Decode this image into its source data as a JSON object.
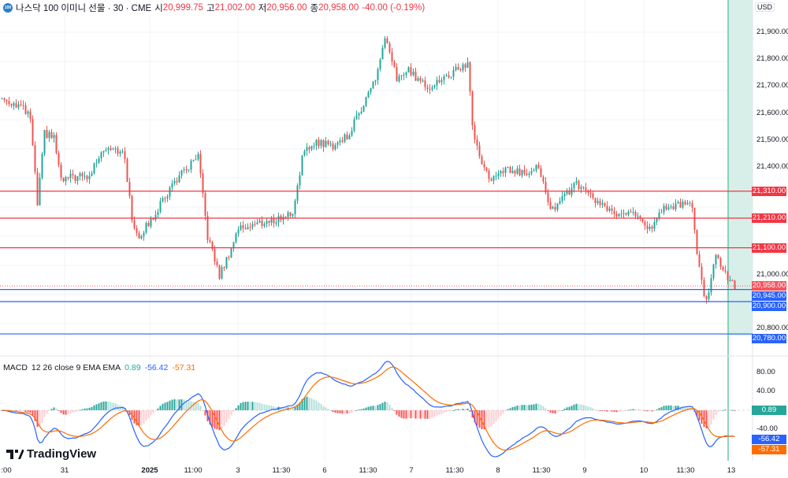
{
  "header": {
    "title": "나스닥 100 이미니 선물 · 30 · CME",
    "open_label": "시",
    "open": "20,999.75",
    "high_label": "고",
    "high": "21,002.00",
    "low_label": "저",
    "low": "20,956.00",
    "close_label": "종",
    "close": "20,958.00",
    "change": "-40.00 (-0.19%)",
    "logo_text": "100"
  },
  "currency": "USD",
  "price_axis": [
    "21,900.00",
    "21,800.00",
    "21,700.00",
    "21,600.00",
    "21,500.00",
    "21,400.00",
    "21,000.00",
    "20,800.00"
  ],
  "price_axis_values": [
    21900,
    21800,
    21700,
    21600,
    21500,
    21400,
    21000,
    20800
  ],
  "levels": [
    {
      "label": "21,310.00",
      "value": 21310,
      "color": "#f23645"
    },
    {
      "label": "21,210.00",
      "value": 21210,
      "color": "#f23645"
    },
    {
      "label": "21,100.00",
      "value": 21100,
      "color": "#f23645"
    },
    {
      "label": "20,945.00",
      "value": 20945,
      "color": "#2962ff"
    },
    {
      "label": "20,900.00",
      "value": 20900,
      "color": "#2962ff"
    },
    {
      "label": "20,780.00",
      "value": 20780,
      "color": "#2962ff"
    }
  ],
  "last_price": {
    "label": "20,958.00",
    "value": 20958,
    "color": "#f7525f"
  },
  "macd": {
    "title": "MACD",
    "params": "12 26 close 9 EMA EMA",
    "hist": "0.89",
    "macd": "-56.42",
    "signal": "-57.31",
    "axis": [
      "80.00",
      "40.00",
      "-40.00"
    ],
    "axis_values": [
      80,
      40,
      -40
    ],
    "colors": {
      "hist": "#26a69a",
      "macd": "#2962ff",
      "signal": "#ff6d00"
    }
  },
  "time_axis": [
    ":00",
    "31",
    "2025",
    "11:00",
    "3",
    "11:30",
    "6",
    "11:30",
    "7",
    "11:30",
    "8",
    "11:30",
    "9",
    "10",
    "11:30",
    "13"
  ],
  "brand": "TradingView",
  "chart_data": {
    "type": "candlestick",
    "ylim": [
      20780,
      21930
    ],
    "anchors": [
      [
        0,
        21654
      ],
      [
        8,
        21625
      ],
      [
        12,
        21581
      ],
      [
        15,
        21260
      ],
      [
        18,
        21523
      ],
      [
        22,
        21509
      ],
      [
        25,
        21347
      ],
      [
        30,
        21362
      ],
      [
        37,
        21362
      ],
      [
        42,
        21464
      ],
      [
        47,
        21479
      ],
      [
        52,
        21435
      ],
      [
        55,
        21201
      ],
      [
        58,
        21143
      ],
      [
        63,
        21201
      ],
      [
        67,
        21260
      ],
      [
        73,
        21347
      ],
      [
        83,
        21435
      ],
      [
        87,
        21143
      ],
      [
        92,
        20996
      ],
      [
        95,
        21055
      ],
      [
        100,
        21172
      ],
      [
        107,
        21187
      ],
      [
        115,
        21201
      ],
      [
        123,
        21230
      ],
      [
        127,
        21435
      ],
      [
        132,
        21494
      ],
      [
        140,
        21479
      ],
      [
        147,
        21523
      ],
      [
        153,
        21640
      ],
      [
        158,
        21727
      ],
      [
        162,
        21874
      ],
      [
        167,
        21727
      ],
      [
        172,
        21757
      ],
      [
        180,
        21698
      ],
      [
        187,
        21727
      ],
      [
        197,
        21786
      ],
      [
        199,
        21552
      ],
      [
        202,
        21435
      ],
      [
        207,
        21347
      ],
      [
        213,
        21391
      ],
      [
        220,
        21377
      ],
      [
        227,
        21406
      ],
      [
        232,
        21230
      ],
      [
        237,
        21289
      ],
      [
        243,
        21333
      ],
      [
        253,
        21260
      ],
      [
        260,
        21216
      ],
      [
        267,
        21245
      ],
      [
        273,
        21157
      ],
      [
        280,
        21245
      ],
      [
        287,
        21260
      ],
      [
        292,
        21260
      ],
      [
        294,
        21084
      ],
      [
        297,
        20909
      ],
      [
        299,
        20938
      ],
      [
        302,
        21084
      ],
      [
        305,
        21011
      ],
      [
        310,
        20958
      ]
    ]
  }
}
